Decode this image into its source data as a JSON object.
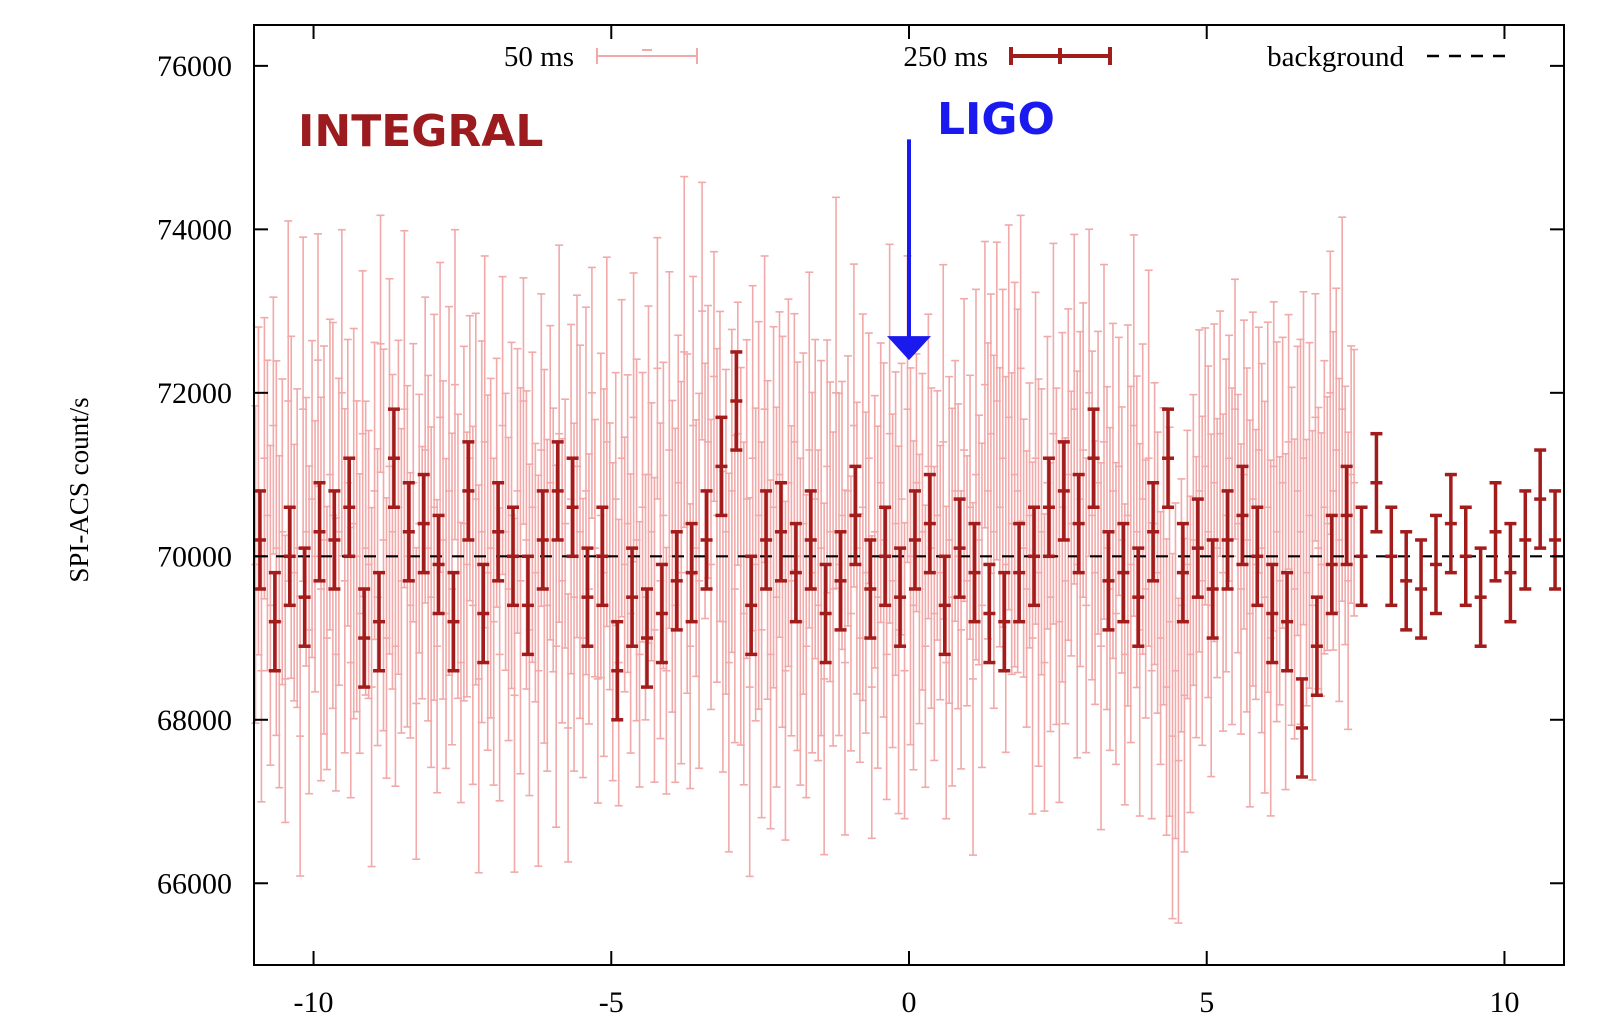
{
  "chart_data": {
    "type": "scatter",
    "ylabel": "SPI-ACS count/s",
    "xlabel": "",
    "xlim": [
      -11,
      11
    ],
    "ylim": [
      65000,
      76500
    ],
    "x_ticks": [
      -10,
      -5,
      0,
      5,
      10
    ],
    "x_tick_labels": [
      "-10",
      "-5",
      "0",
      "5",
      "10"
    ],
    "y_ticks": [
      66000,
      68000,
      70000,
      72000,
      74000,
      76000
    ],
    "y_tick_labels": [
      "66000",
      "68000",
      "70000",
      "72000",
      "74000",
      "76000"
    ],
    "grid": false,
    "legend_placement": "top",
    "legend": [
      "50 ms",
      "250 ms",
      "background"
    ],
    "annotations": [
      {
        "text": "INTEGRAL",
        "color": "#9b1b1e"
      },
      {
        "text": "LIGO",
        "color": "#1a1aee",
        "arrow_x": 0,
        "arrow_y_start": 75100,
        "arrow_y_end": 72400
      }
    ],
    "colors": {
      "series_50ms": "#f1a9a9",
      "series_250ms": "#a31c1c",
      "background": "#000000",
      "ligo": "#1a1aee",
      "integral": "#9b1b1e"
    },
    "series": [
      {
        "name": "background",
        "kind": "line",
        "style": "dashed",
        "value": 70000
      },
      {
        "name": "250 ms",
        "kind": "errorbar",
        "x": [
          -10.9,
          -10.65,
          -10.4,
          -10.15,
          -9.9,
          -9.65,
          -9.4,
          -9.15,
          -8.9,
          -8.65,
          -8.4,
          -8.15,
          -7.9,
          -7.65,
          -7.4,
          -7.15,
          -6.9,
          -6.65,
          -6.4,
          -6.15,
          -5.9,
          -5.65,
          -5.4,
          -5.15,
          -4.9,
          -4.65,
          -4.4,
          -4.15,
          -3.9,
          -3.65,
          -3.4,
          -3.15,
          -2.9,
          -2.65,
          -2.4,
          -2.15,
          -1.9,
          -1.65,
          -1.4,
          -1.15,
          -0.9,
          -0.65,
          -0.4,
          -0.15,
          0.1,
          0.35,
          0.6,
          0.85,
          1.1,
          1.35,
          1.6,
          1.85,
          2.1,
          2.35,
          2.6,
          2.85,
          3.1,
          3.35,
          3.6,
          3.85,
          4.1,
          4.35,
          4.6,
          4.85,
          5.1,
          5.35,
          5.6,
          5.85,
          6.1,
          6.35,
          6.6,
          6.85,
          7.1,
          7.35,
          7.6,
          7.85,
          8.1,
          8.35,
          8.6,
          8.85,
          9.1,
          9.35,
          9.6,
          9.85,
          10.1,
          10.35,
          10.6,
          10.85
        ],
        "y": [
          70200,
          69200,
          70000,
          69500,
          70300,
          70200,
          70600,
          69000,
          69200,
          71200,
          70300,
          70400,
          69900,
          69200,
          70800,
          69300,
          70300,
          70000,
          69400,
          70200,
          70800,
          70600,
          69500,
          70000,
          68600,
          69500,
          69000,
          69300,
          69700,
          69800,
          70200,
          71100,
          71900,
          69400,
          70200,
          70300,
          69800,
          70200,
          69300,
          69700,
          70500,
          69600,
          70000,
          69500,
          70200,
          70400,
          69400,
          70100,
          69800,
          69300,
          69200,
          69800,
          70000,
          70600,
          70800,
          70400,
          71200,
          69700,
          69800,
          69500,
          70300,
          71200,
          69800,
          70100,
          69600,
          70200,
          70500,
          70000,
          69300,
          69200,
          67900,
          68900,
          69900,
          70500,
          70000,
          70900,
          70000,
          69700,
          69600,
          69900,
          70400,
          70000,
          69500,
          70300,
          69800,
          70200,
          70700,
          70200
        ],
        "err": [
          600,
          600,
          600,
          600,
          600,
          600,
          600,
          600,
          600,
          600,
          600,
          600,
          600,
          600,
          600,
          600,
          600,
          600,
          600,
          600,
          600,
          600,
          600,
          600,
          600,
          600,
          600,
          600,
          600,
          600,
          600,
          600,
          600,
          600,
          600,
          600,
          600,
          600,
          600,
          600,
          600,
          600,
          600,
          600,
          600,
          600,
          600,
          600,
          600,
          600,
          600,
          600,
          600,
          600,
          600,
          600,
          600,
          600,
          600,
          600,
          600,
          600,
          600,
          600,
          600,
          600,
          600,
          600,
          600,
          600,
          600,
          600,
          600,
          600,
          600,
          600,
          600,
          600,
          600,
          600,
          600,
          600,
          600,
          600,
          600,
          600,
          600,
          600
        ]
      },
      {
        "name": "50 ms",
        "kind": "errorbar",
        "x_start": -10.975,
        "x_step": 0.05,
        "y": [
          69900,
          70800,
          68600,
          71200,
          70500,
          69400,
          71600,
          70100,
          69200,
          70300,
          68500,
          71900,
          70600,
          69800,
          70100,
          67800,
          71800,
          70300,
          69100,
          70700,
          70000,
          72400,
          69600,
          70200,
          69000,
          71000,
          70500,
          68800,
          70300,
          72000,
          69700,
          70900,
          68700,
          70400,
          70000,
          69300,
          71500,
          70100,
          69900,
          68400,
          70800,
          69500,
          72600,
          70200,
          69000,
          71100,
          70300,
          68900,
          70600,
          69700,
          71800,
          70000,
          69400,
          70900,
          68200,
          70400,
          69800,
          71300,
          70100,
          69500,
          70600,
          68900,
          71700,
          70200,
          69300,
          70800,
          69600,
          72100,
          70000,
          68700,
          70400,
          69900,
          71200,
          69400,
          70700,
          68500,
          70300,
          71400,
          69800,
          70100,
          69200,
          70900,
          68800,
          71600,
          70300,
          69600,
          70500,
          68300,
          70800,
          69700,
          71900,
          70200,
          69100,
          70600,
          69800,
          68600,
          71300,
          70000,
          69400,
          70900,
          70200,
          68900,
          71500,
          69700,
          70400,
          67900,
          70700,
          69500,
          71100,
          70300,
          69000,
          70800,
          69600,
          72000,
          70100,
          68500,
          70500,
          69800,
          71400,
          70000,
          69200,
          70700,
          68700,
          71200,
          69900,
          70400,
          69300,
          71700,
          70200,
          68800,
          70600,
          69500,
          71000,
          70300,
          69100,
          72300,
          69700,
          70500,
          68600,
          71300,
          70000,
          69400,
          70900,
          69800,
          72500,
          70400,
          68900,
          71600,
          70100,
          69700,
          73000,
          70800,
          71400,
          69900,
          72200,
          70500,
          71100,
          69200,
          70300,
          68700,
          70800,
          69600,
          71500,
          70000,
          69300,
          70700,
          68400,
          71200,
          69900,
          70500,
          69100,
          71800,
          70200,
          68800,
          70600,
          69500,
          71000,
          70300,
          68600,
          70900,
          69700,
          71400,
          70000,
          69200,
          70400,
          68900,
          71300,
          69800,
          70700,
          69400,
          70100,
          68500,
          71100,
          70300,
          69600,
          72000,
          69900,
          70500,
          68700,
          70800,
          69300,
          71600,
          70100,
          69000,
          70600,
          69800,
          71200,
          68400,
          70300,
          69500,
          70900,
          70200,
          68800,
          71500,
          69700,
          70400,
          69100,
          70700,
          68600,
          71800,
          70000,
          69400,
          70900,
          69600,
          70300,
          68900,
          71100,
          70100,
          69300,
          70500,
          69800,
          71400,
          68700,
          70200,
          69500,
          70800,
          70000,
          69100,
          71300,
          69700,
          70600,
          68500,
          71000,
          70200,
          69400,
          72100,
          70800,
          71500,
          70300,
          71900,
          70600,
          71200,
          69900,
          71700,
          70400,
          71000,
          70800,
          72300,
          70100,
          69600,
          70500,
          69000,
          71200,
          69800,
          70300,
          68700,
          70900,
          69500,
          71500,
          70000,
          69200,
          70600,
          69700,
          71000,
          70400,
          71800,
          69900,
          70700,
          71300,
          69400,
          72000,
          70500,
          69800,
          70900,
          68900,
          71400,
          70100,
          69600,
          70800,
          69300,
          71100,
          70200,
          68800,
          70500,
          69900,
          71600,
          70300,
          69100,
          70700,
          69600,
          71200,
          68600,
          70400,
          69800,
          69000,
          70000,
          68400,
          69200,
          67800,
          68600,
          67500,
          69400,
          68300,
          69900,
          68800,
          70200,
          69500,
          70800,
          69700,
          71100,
          70300,
          69400,
          70900,
          70100,
          71500,
          69800,
          70500,
          71200,
          70000,
          71800,
          70400,
          69600,
          71000,
          70200,
          69300,
          70700,
          69900,
          71300,
          70100,
          69500,
          70600,
          69000,
          71100,
          70300,
          69700,
          70900,
          69200,
          71400,
          70000,
          69600,
          70800,
          70300,
          71200,
          69800,
          70500,
          69400,
          71700,
          70100,
          69900,
          70600,
          70400,
          72000,
          70800,
          71300,
          70200,
          71800,
          70500,
          69700,
          71000,
          70900
        ]
      }
    ]
  }
}
